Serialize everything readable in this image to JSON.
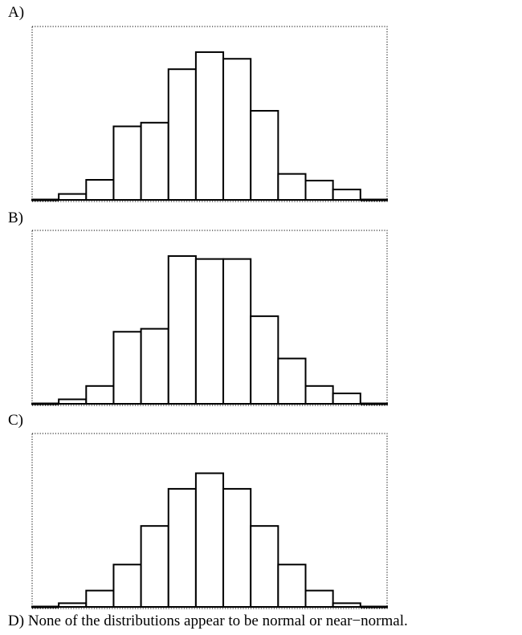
{
  "options": {
    "a": {
      "label": "A)"
    },
    "b": {
      "label": "B)"
    },
    "c": {
      "label": "C)"
    },
    "d": {
      "label": "D)",
      "text": "None of the distributions appear to be normal or near−normal."
    }
  },
  "chart_data": [
    {
      "type": "bar",
      "title": "",
      "xlabel": "",
      "ylabel": "",
      "ylim": [
        0,
        100
      ],
      "grid": false,
      "values": [
        0.5,
        4,
        13.5,
        49.5,
        52,
        88,
        99.5,
        95,
        60,
        17.5,
        13,
        7,
        0.5
      ]
    },
    {
      "type": "bar",
      "title": "",
      "xlabel": "",
      "ylabel": "",
      "ylim": [
        0,
        100
      ],
      "grid": false,
      "values": [
        0.5,
        3,
        12,
        48.5,
        50.5,
        99.5,
        97.5,
        97.5,
        59,
        30.5,
        12,
        7,
        0.5
      ]
    },
    {
      "type": "bar",
      "title": "",
      "xlabel": "",
      "ylabel": "",
      "ylim": [
        0,
        100
      ],
      "grid": false,
      "values": [
        0.5,
        2.5,
        11,
        28.5,
        54.5,
        79.5,
        90,
        79.5,
        54.5,
        28.5,
        11,
        2.5,
        0.5
      ]
    }
  ]
}
